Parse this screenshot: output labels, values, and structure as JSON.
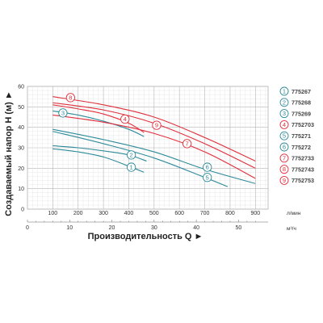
{
  "chart_data": {
    "type": "line",
    "ylabel": "Создаваемый напор H (м) ►",
    "xlabel": "Производительность Q ►",
    "x_unit_primary": "л/мин",
    "x_unit_secondary": "м³/ч",
    "ylim": [
      0,
      60
    ],
    "xlim": [
      0,
      950
    ],
    "yticks": [
      0,
      10,
      20,
      30,
      40,
      50,
      60
    ],
    "xticks": [
      100,
      200,
      300,
      400,
      500,
      600,
      700,
      800,
      900
    ],
    "x2ticks": [
      0,
      10,
      20,
      30,
      40,
      50
    ],
    "grid": true,
    "legend_position": "right",
    "colors": {
      "red": "#e0303c",
      "teal": "#2e8b9a"
    },
    "series": [
      {
        "name": "775267",
        "num": "1",
        "color": "teal",
        "points": [
          [
            100,
            29.5
          ],
          [
            200,
            28
          ],
          [
            300,
            25.5
          ],
          [
            400,
            21
          ],
          [
            460,
            18
          ]
        ]
      },
      {
        "name": "775268",
        "num": "2",
        "color": "teal",
        "points": [
          [
            100,
            31
          ],
          [
            200,
            30
          ],
          [
            300,
            28.5
          ],
          [
            400,
            26.5
          ],
          [
            470,
            23.5
          ]
        ]
      },
      {
        "name": "775269",
        "num": "3",
        "color": "teal",
        "points": [
          [
            100,
            48
          ],
          [
            200,
            46
          ],
          [
            300,
            43
          ],
          [
            400,
            39
          ],
          [
            460,
            35.5
          ]
        ]
      },
      {
        "name": "7752703",
        "num": "4",
        "color": "red",
        "points": [
          [
            100,
            51
          ],
          [
            200,
            49
          ],
          [
            300,
            46.5
          ],
          [
            400,
            42
          ],
          [
            460,
            37.5
          ]
        ]
      },
      {
        "name": "775271",
        "num": "5",
        "color": "teal",
        "points": [
          [
            100,
            38
          ],
          [
            300,
            32
          ],
          [
            500,
            25
          ],
          [
            700,
            15.5
          ],
          [
            790,
            11
          ]
        ]
      },
      {
        "name": "775272",
        "num": "6",
        "color": "teal",
        "points": [
          [
            100,
            39
          ],
          [
            300,
            34
          ],
          [
            500,
            28
          ],
          [
            700,
            19.5
          ],
          [
            900,
            12.5
          ]
        ]
      },
      {
        "name": "7752733",
        "num": "7",
        "color": "red",
        "points": [
          [
            100,
            46
          ],
          [
            300,
            42.5
          ],
          [
            500,
            37
          ],
          [
            700,
            28
          ],
          [
            900,
            15
          ]
        ]
      },
      {
        "name": "7752743",
        "num": "8",
        "color": "red",
        "points": [
          [
            100,
            52
          ],
          [
            300,
            48.5
          ],
          [
            500,
            42
          ],
          [
            700,
            32
          ],
          [
            900,
            20
          ]
        ]
      },
      {
        "name": "7752753",
        "num": "9",
        "color": "red",
        "points": [
          [
            100,
            55
          ],
          [
            300,
            51
          ],
          [
            500,
            45
          ],
          [
            700,
            35
          ],
          [
            900,
            23.5
          ]
        ]
      }
    ],
    "annotations": [
      {
        "num": "1",
        "series": "775267",
        "x": 410,
        "y": 20.5
      },
      {
        "num": "2",
        "series": "775268",
        "x": 410,
        "y": 26.5
      },
      {
        "num": "3",
        "series": "775269",
        "x": 140,
        "y": 47
      },
      {
        "num": "4",
        "series": "7752703",
        "x": 385,
        "y": 44
      },
      {
        "num": "5",
        "series": "775271",
        "x": 710,
        "y": 15.5
      },
      {
        "num": "6",
        "series": "775272",
        "x": 710,
        "y": 20.5
      },
      {
        "num": "7",
        "series": "7752733",
        "x": 630,
        "y": 32
      },
      {
        "num": "8",
        "series": "7752743",
        "x": 170,
        "y": 54.5
      },
      {
        "num": "9",
        "series": "7752753",
        "x": 510,
        "y": 41
      }
    ]
  }
}
